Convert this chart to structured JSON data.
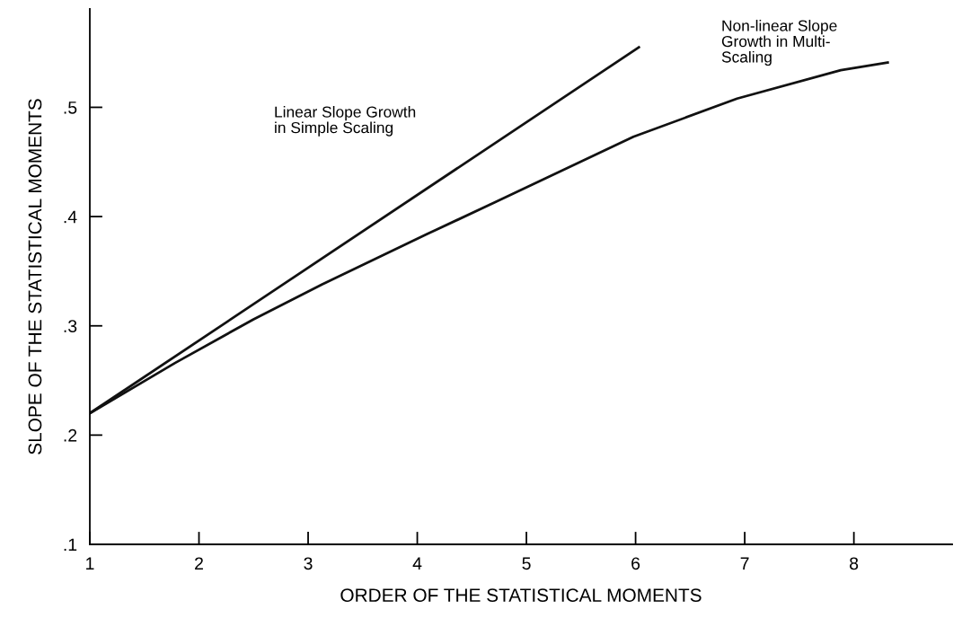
{
  "chart_data": {
    "type": "line",
    "xlabel": "ORDER OF THE STATISTICAL MOMENTS",
    "ylabel": "SLOPE OF THE STATISTICAL MOMENTS",
    "series": [
      {
        "color": "#111111",
        "x": [
          1,
          6.03
        ],
        "values": [
          0.22,
          0.555
        ]
      },
      {
        "color": "#111111",
        "x": [
          1,
          1.78,
          2.5,
          3.13,
          4.09,
          4.71,
          5.98,
          6.93,
          7.88,
          8.31
        ],
        "values": [
          0.22,
          0.266,
          0.306,
          0.338,
          0.384,
          0.413,
          0.473,
          0.508,
          0.534,
          0.541
        ]
      }
    ],
    "xlim": [
      1,
      8.9
    ],
    "ylim": [
      0.1,
      0.59
    ],
    "xticks": [
      1,
      2,
      3,
      4,
      5,
      6,
      7,
      8
    ],
    "yticks": [
      {
        "value": 0.1,
        "label": ".1"
      },
      {
        "value": 0.2,
        "label": ".2"
      },
      {
        "value": 0.3,
        "label": ".3"
      },
      {
        "value": 0.4,
        "label": ".4"
      },
      {
        "value": 0.5,
        "label": ".5"
      }
    ],
    "annotations": [
      "Linear Slope Growth\nin Simple Scaling",
      "Non-linear Slope\nGrowth in Multi-\nScaling"
    ],
    "grid": false,
    "legend": false,
    "marker": "none",
    "line_style": "solid"
  }
}
